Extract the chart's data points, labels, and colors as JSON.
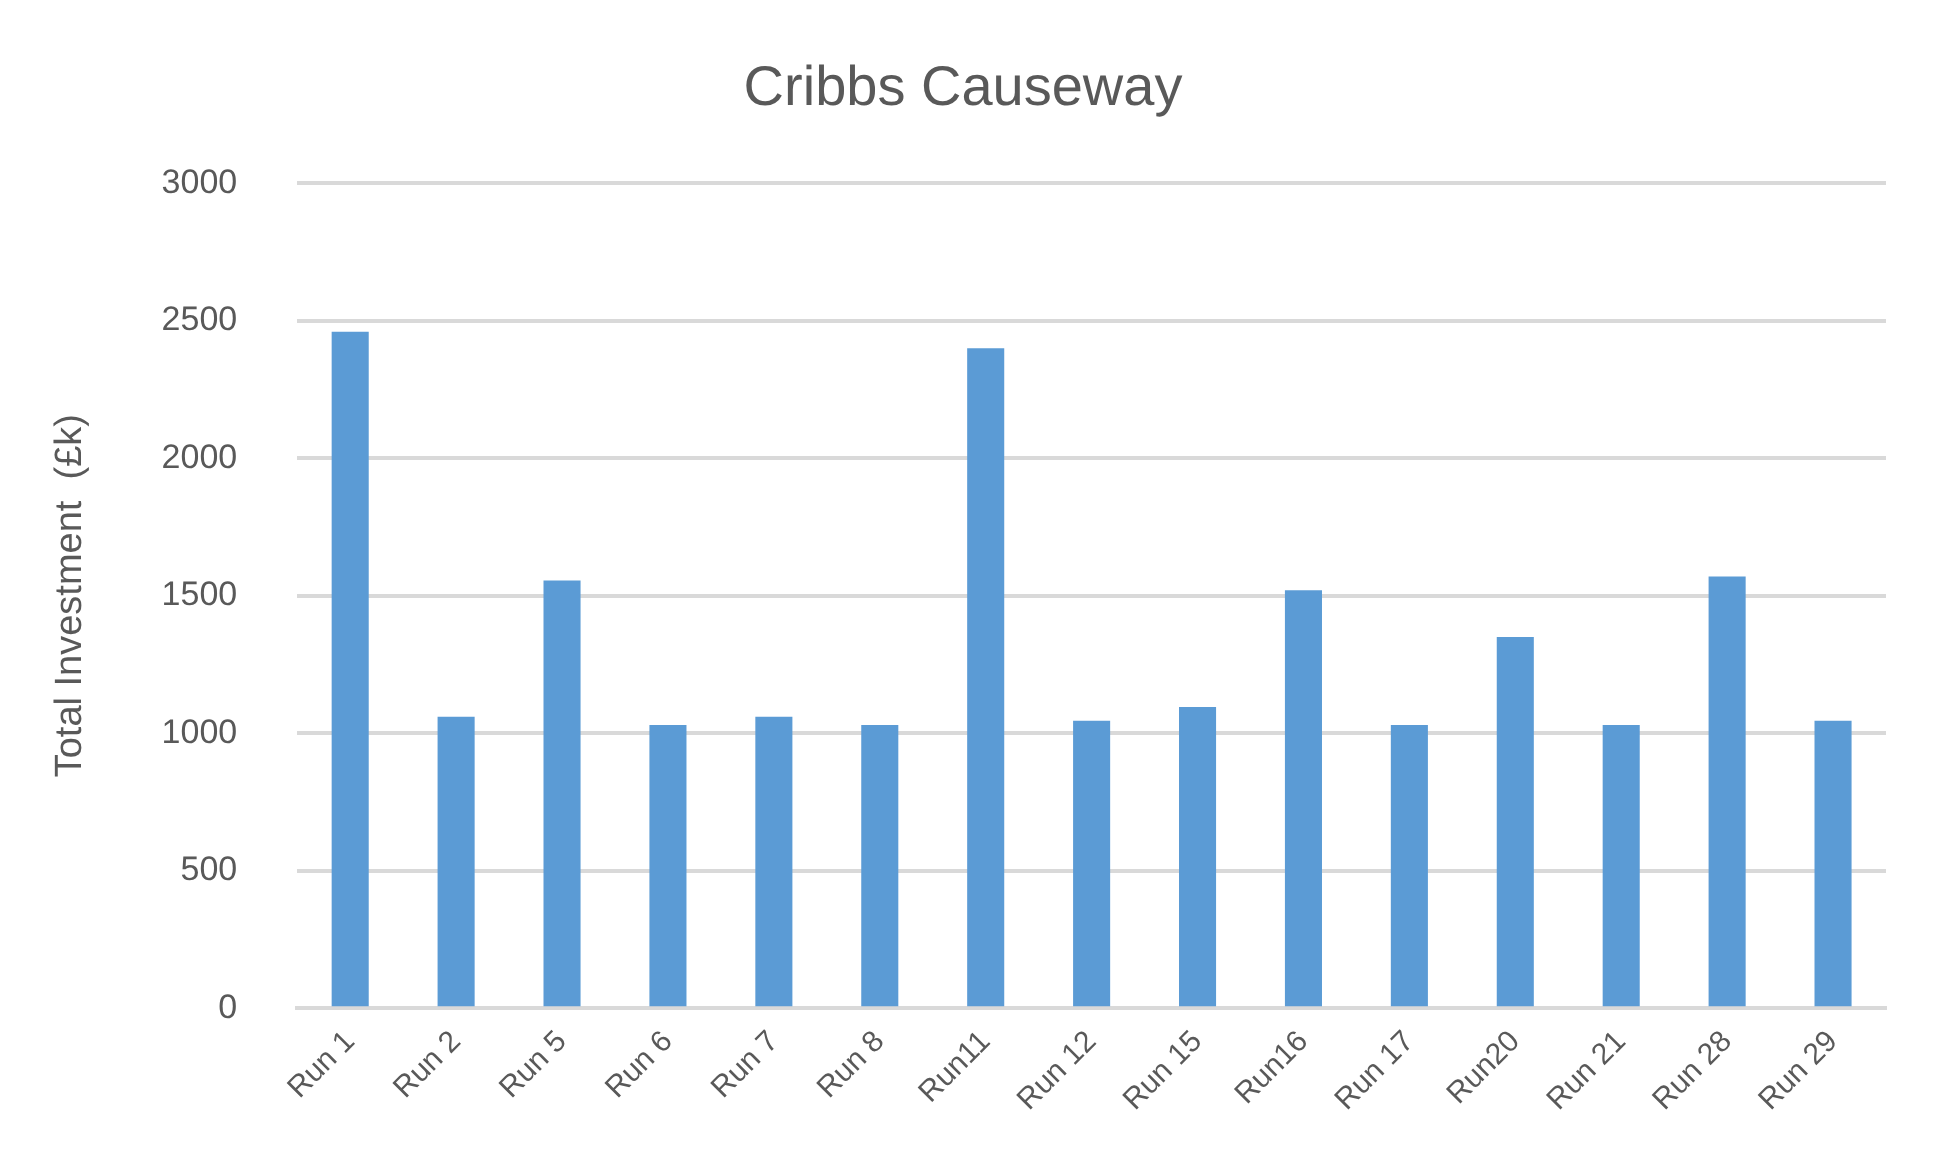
{
  "chart_data": {
    "type": "bar",
    "title": "Cribbs Causeway",
    "ylabel": "Total Investment  (£k)",
    "categories": [
      "Run 1",
      "Run 2",
      "Run 5",
      "Run 6",
      "Run 7",
      "Run 8",
      "Run11",
      "Run 12",
      "Run 15",
      "Run16",
      "Run 17",
      "Run20",
      "Run 21",
      "Run 28",
      "Run 29"
    ],
    "values": [
      2460,
      1060,
      1555,
      1030,
      1060,
      1030,
      2400,
      1045,
      1095,
      1520,
      1030,
      1350,
      1030,
      1570,
      1045
    ],
    "color": "#5b9bd5",
    "ylim": [
      0,
      3000
    ],
    "yticks": [
      0,
      500,
      1000,
      1500,
      2000,
      2500,
      3000
    ],
    "grid": "y"
  }
}
